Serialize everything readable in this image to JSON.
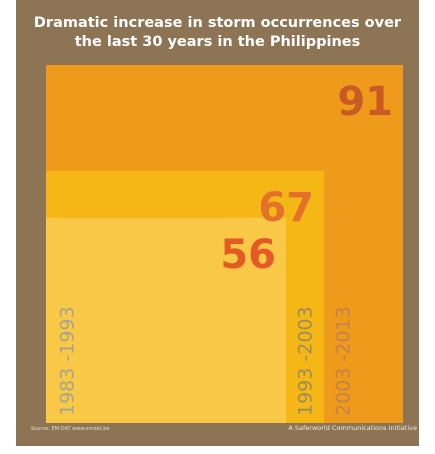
{
  "chart_data": {
    "type": "area",
    "title_lines": [
      "Dramatic increase in storm occurrences over",
      "the last 30 years in the Philippines"
    ],
    "categories": [
      "1983 -1993",
      "1993 -2003",
      "2003 -2013"
    ],
    "values": [
      56,
      67,
      91
    ],
    "colors": [
      "#f8c846",
      "#f4b716",
      "#ee9a1a"
    ],
    "value_colors": [
      "#e35a25",
      "#e4712a",
      "#c85a24"
    ],
    "label_colors": [
      "#a7a48f",
      "#9b8d5b",
      "#c2834f"
    ],
    "source": "Source: EM-DAT www.emdat.be",
    "credit": "A Saferworld Communications Initiative"
  }
}
